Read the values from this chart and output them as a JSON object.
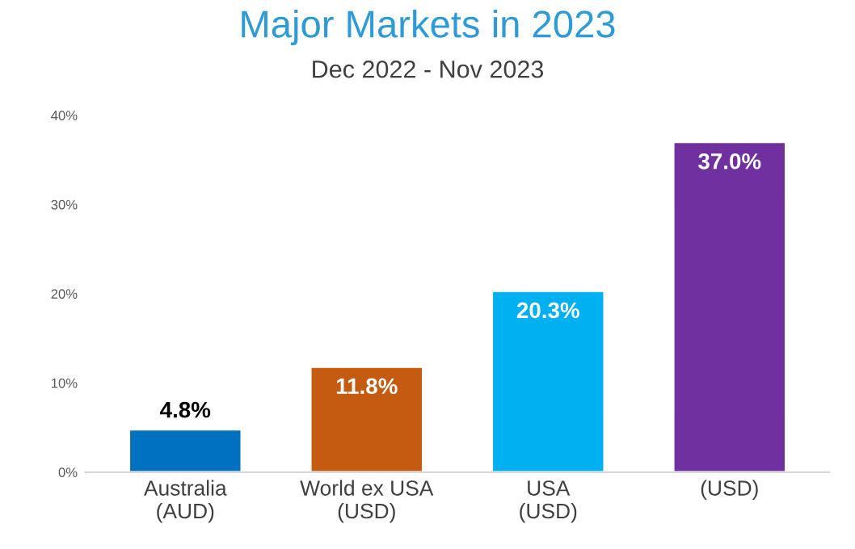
{
  "chart_data": {
    "type": "bar",
    "title": "Major Markets in 2023",
    "subtitle": "Dec 2022 - Nov 2023",
    "categories": [
      "Australia\n(AUD)",
      "World ex USA\n(USD)",
      "USA\n(USD)",
      "(USD)"
    ],
    "values": [
      4.8,
      11.8,
      20.3,
      37.0
    ],
    "colors": [
      "#0070c0",
      "#c55a11",
      "#00b0f0",
      "#7030a0"
    ],
    "value_labels": [
      "4.8%",
      "11.8%",
      "20.3%",
      "37.0%"
    ],
    "ylim": [
      0,
      40
    ],
    "yticks": [
      {
        "value": 0,
        "label": "0%"
      },
      {
        "value": 10,
        "label": "10%"
      },
      {
        "value": 20,
        "label": "20%"
      },
      {
        "value": 30,
        "label": "30%"
      },
      {
        "value": 40,
        "label": "40%"
      }
    ],
    "grid": false,
    "legend": false
  }
}
